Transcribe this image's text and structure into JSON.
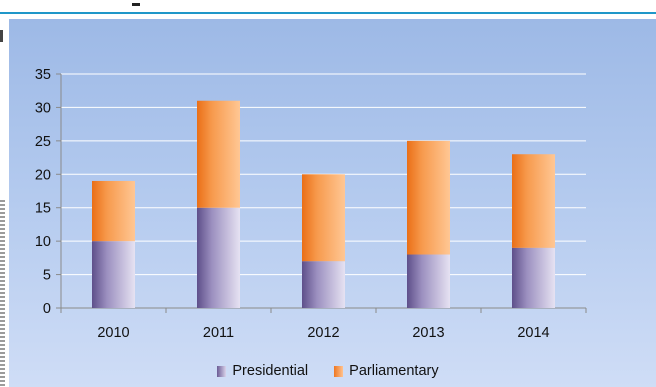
{
  "chart_data": {
    "type": "bar",
    "stacked": true,
    "categories": [
      "2010",
      "2011",
      "2012",
      "2013",
      "2014"
    ],
    "series": [
      {
        "name": "Presidential",
        "values": [
          10,
          15,
          7,
          8,
          9
        ]
      },
      {
        "name": "Parliamentary",
        "values": [
          9,
          16,
          13,
          17,
          14
        ]
      }
    ],
    "title": "",
    "xlabel": "",
    "ylabel": "",
    "ylim": [
      0,
      35
    ],
    "yticks": [
      "0",
      "5",
      "10",
      "15",
      "20",
      "25",
      "30",
      "35"
    ],
    "grid": true,
    "legend_position": "bottom"
  },
  "colors": {
    "presidential_dark": "#6b5b95",
    "presidential_light": "#e2ddef",
    "parliamentary_dark": "#ee7722",
    "parliamentary_light": "#ffc28f"
  }
}
